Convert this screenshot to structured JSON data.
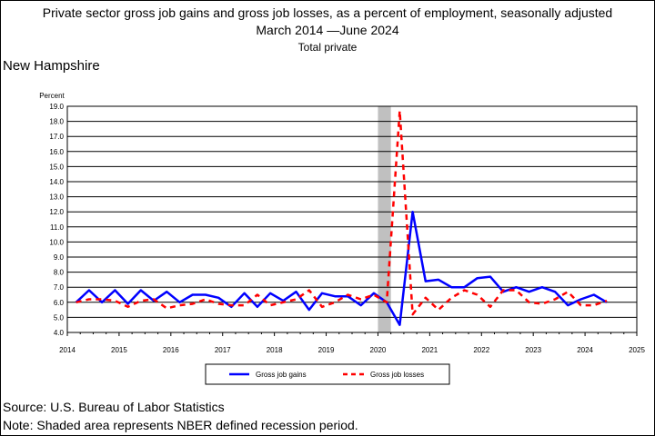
{
  "header": {
    "title_line1": "Private sector gross job gains and gross job losses, as a percent of employment, seasonally adjusted",
    "title_line2": "March 2014 —June 2024",
    "subtitle": "Total private",
    "region": "New Hampshire"
  },
  "footer": {
    "source": "Source: U.S. Bureau of Labor Statistics",
    "note": "Note: Shaded area represents NBER defined recession period."
  },
  "chart_data": {
    "type": "line",
    "ylabel": "Percent",
    "xlabel": "",
    "ylim": [
      4.0,
      19.0
    ],
    "xlim": [
      2014,
      2025
    ],
    "yticks": [
      "4.0",
      "5.0",
      "6.0",
      "7.0",
      "8.0",
      "9.0",
      "10.0",
      "11.0",
      "12.0",
      "13.0",
      "14.0",
      "15.0",
      "16.0",
      "17.0",
      "18.0",
      "19.0"
    ],
    "xticks": [
      "2014",
      "2015",
      "2016",
      "2017",
      "2018",
      "2019",
      "2020",
      "2021",
      "2022",
      "2023",
      "2024",
      "2025"
    ],
    "grid": "horizontal",
    "legend_position": "bottom",
    "recession": {
      "start": 2020.0,
      "end": 2020.25,
      "color": "#c0c0c0"
    },
    "x": [
      2014.17,
      2014.42,
      2014.67,
      2014.92,
      2015.17,
      2015.42,
      2015.67,
      2015.92,
      2016.17,
      2016.42,
      2016.67,
      2016.92,
      2017.17,
      2017.42,
      2017.67,
      2017.92,
      2018.17,
      2018.42,
      2018.67,
      2018.92,
      2019.17,
      2019.42,
      2019.67,
      2019.92,
      2020.17,
      2020.42,
      2020.67,
      2020.92,
      2021.17,
      2021.42,
      2021.67,
      2021.92,
      2022.17,
      2022.42,
      2022.67,
      2022.92,
      2023.17,
      2023.42,
      2023.67,
      2023.92,
      2024.17,
      2024.42
    ],
    "series": [
      {
        "name": "Gross job gains",
        "color": "#0000ff",
        "style": "solid",
        "values": [
          6.0,
          6.8,
          6.0,
          6.8,
          5.9,
          6.8,
          6.1,
          6.7,
          6.0,
          6.5,
          6.5,
          6.3,
          5.7,
          6.6,
          5.7,
          6.6,
          6.1,
          6.7,
          5.5,
          6.6,
          6.4,
          6.4,
          5.8,
          6.6,
          6.0,
          4.5,
          12.0,
          7.4,
          7.5,
          7.0,
          7.0,
          7.6,
          7.7,
          6.7,
          7.0,
          6.7,
          7.0,
          6.7,
          5.8,
          6.2,
          6.5,
          6.0
        ]
      },
      {
        "name": "Gross job losses",
        "color": "#ff0000",
        "style": "dashed",
        "values": [
          6.0,
          6.2,
          6.2,
          6.1,
          5.7,
          6.1,
          6.2,
          5.6,
          5.8,
          5.9,
          6.2,
          5.9,
          5.8,
          5.8,
          6.5,
          5.8,
          6.0,
          6.2,
          6.8,
          5.7,
          6.0,
          6.5,
          6.2,
          6.5,
          6.0,
          18.7,
          5.2,
          6.3,
          5.5,
          6.3,
          6.8,
          6.5,
          5.7,
          6.8,
          6.8,
          6.0,
          5.9,
          6.2,
          6.7,
          5.8,
          5.8,
          6.1
        ]
      }
    ]
  }
}
